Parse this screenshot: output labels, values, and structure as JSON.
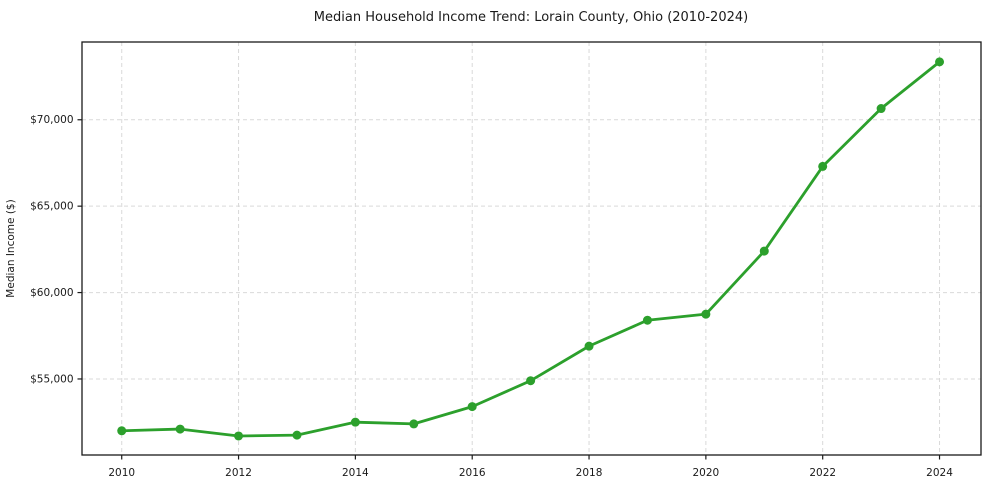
{
  "figure": {
    "background": "#ffffff"
  },
  "chart_data": {
    "type": "line",
    "title": "Median Household Income Trend: Lorain County, Ohio (2010-2024)",
    "xlabel": "",
    "ylabel": "Median Income ($)",
    "x": [
      2010,
      2011,
      2012,
      2013,
      2014,
      2015,
      2016,
      2017,
      2018,
      2019,
      2020,
      2021,
      2022,
      2023,
      2024
    ],
    "series": [
      {
        "name": "Median household income",
        "values": [
          52000,
          52100,
          51700,
          51750,
          52500,
          52400,
          53400,
          54900,
          56900,
          58400,
          58750,
          62400,
          67300,
          70650,
          73350
        ],
        "color": "#2ca02c",
        "marker": "circle",
        "marker_radius": 4.5,
        "line_width": 2.8
      }
    ],
    "xlim": [
      2009.32,
      2024.71
    ],
    "ylim": [
      50600,
      74500
    ],
    "xticks": {
      "values": [
        2010,
        2012,
        2014,
        2016,
        2018,
        2020,
        2022,
        2024
      ],
      "labels": [
        "2010",
        "2012",
        "2014",
        "2016",
        "2018",
        "2020",
        "2022",
        "2024"
      ]
    },
    "yticks": {
      "values": [
        55000,
        60000,
        65000,
        70000
      ],
      "labels": [
        "$55,000",
        "$60,000",
        "$65,000",
        "$70,000"
      ]
    },
    "grid": true,
    "grid_color": "#d9d9d9",
    "grid_dash": "4 3",
    "legend": "none",
    "text_color": "#1a1a1a",
    "spine_color": "#1a1a1a",
    "plot_background": "#ffffff"
  }
}
